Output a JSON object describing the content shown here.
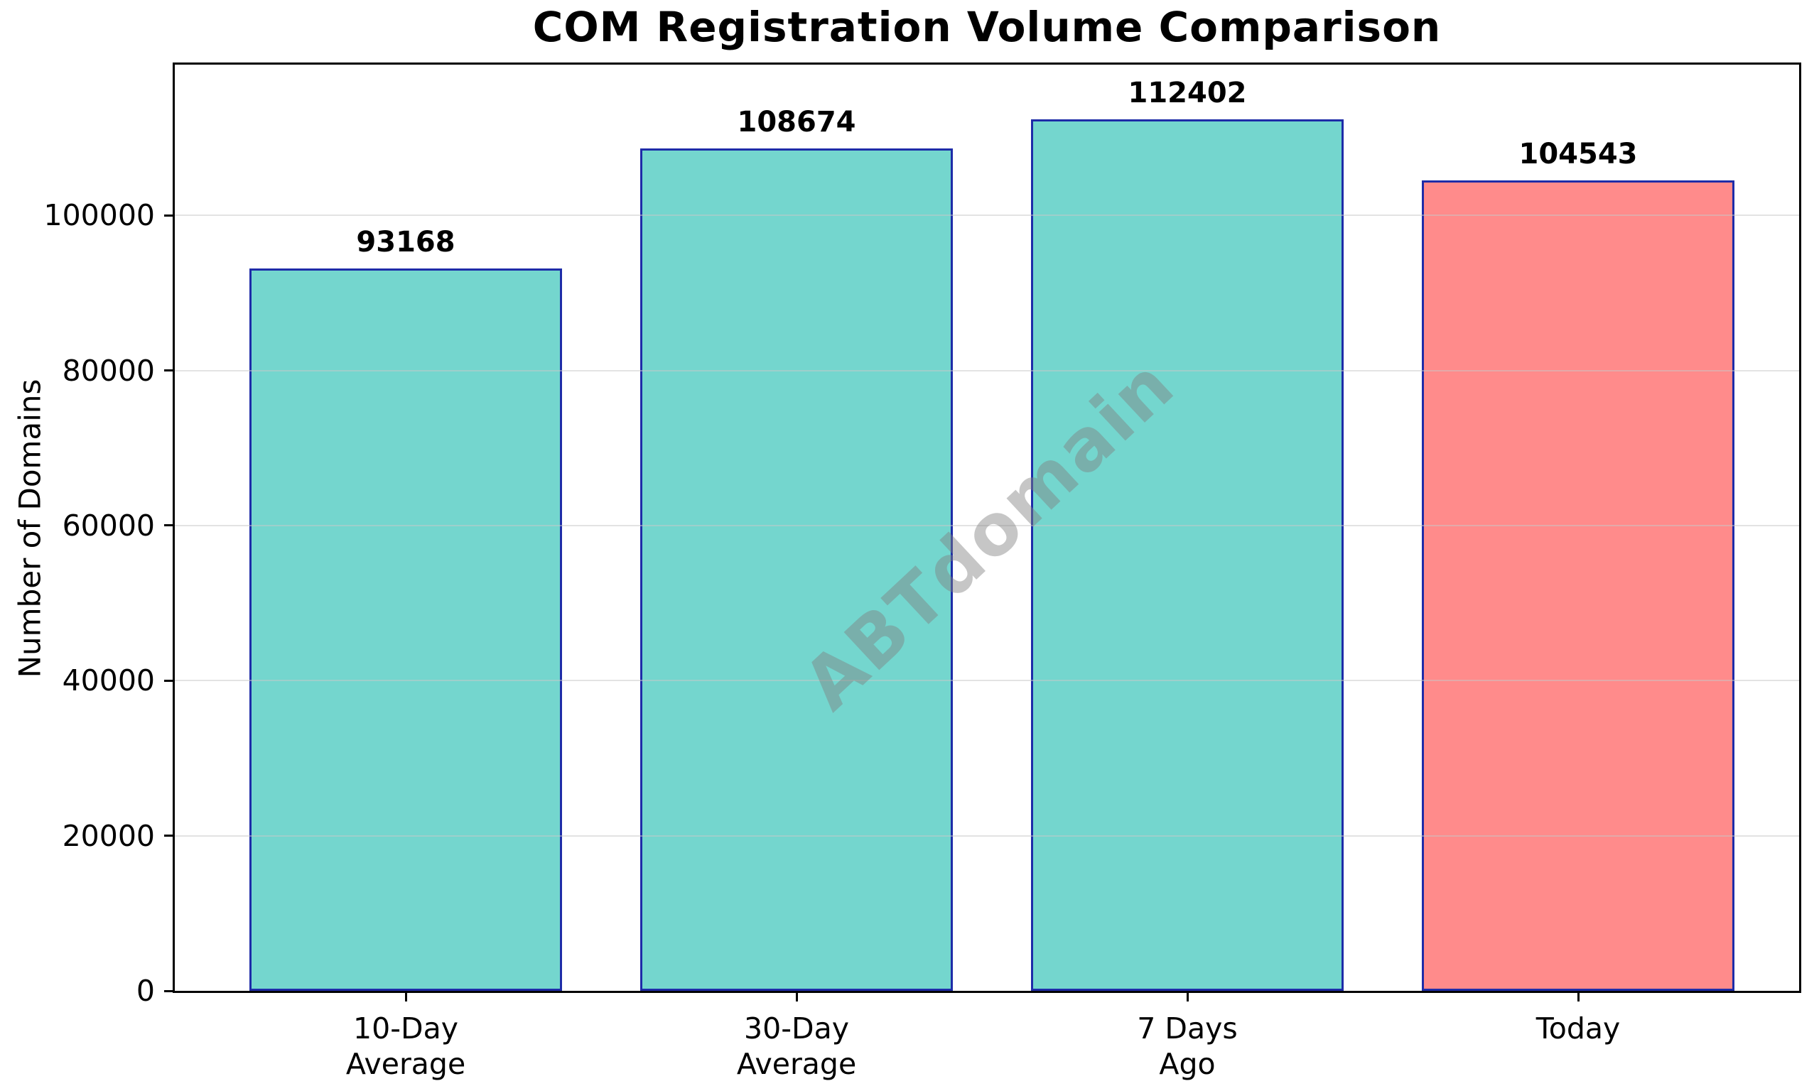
{
  "watermark": "ABTdomain",
  "chart_data": {
    "type": "bar",
    "title": "COM Registration Volume Comparison",
    "ylabel": "Number of Domains",
    "xlabel": "",
    "categories": [
      "10-Day Average",
      "30-Day Average",
      "7 Days Ago",
      "Today"
    ],
    "category_lines": [
      [
        "10-Day",
        "Average"
      ],
      [
        "30-Day",
        "Average"
      ],
      [
        "7 Days",
        "Ago"
      ],
      [
        "Today"
      ]
    ],
    "values": [
      93168,
      108674,
      112402,
      104543
    ],
    "value_labels": [
      "93168",
      "108674",
      "112402",
      "104543"
    ],
    "bar_colors": [
      "#74D6CE",
      "#74D6CE",
      "#74D6CE",
      "#FF8B8B"
    ],
    "edge_color": "#1E2CA8",
    "highlight_color": "#FF8B8B",
    "grid": true,
    "grid_axis": "y",
    "legend": "none",
    "ylim": [
      0,
      119450
    ],
    "yticks": [
      0,
      20000,
      40000,
      60000,
      80000,
      100000
    ],
    "ytick_labels": [
      "0",
      "20000",
      "40000",
      "60000",
      "80000",
      "100000"
    ]
  }
}
